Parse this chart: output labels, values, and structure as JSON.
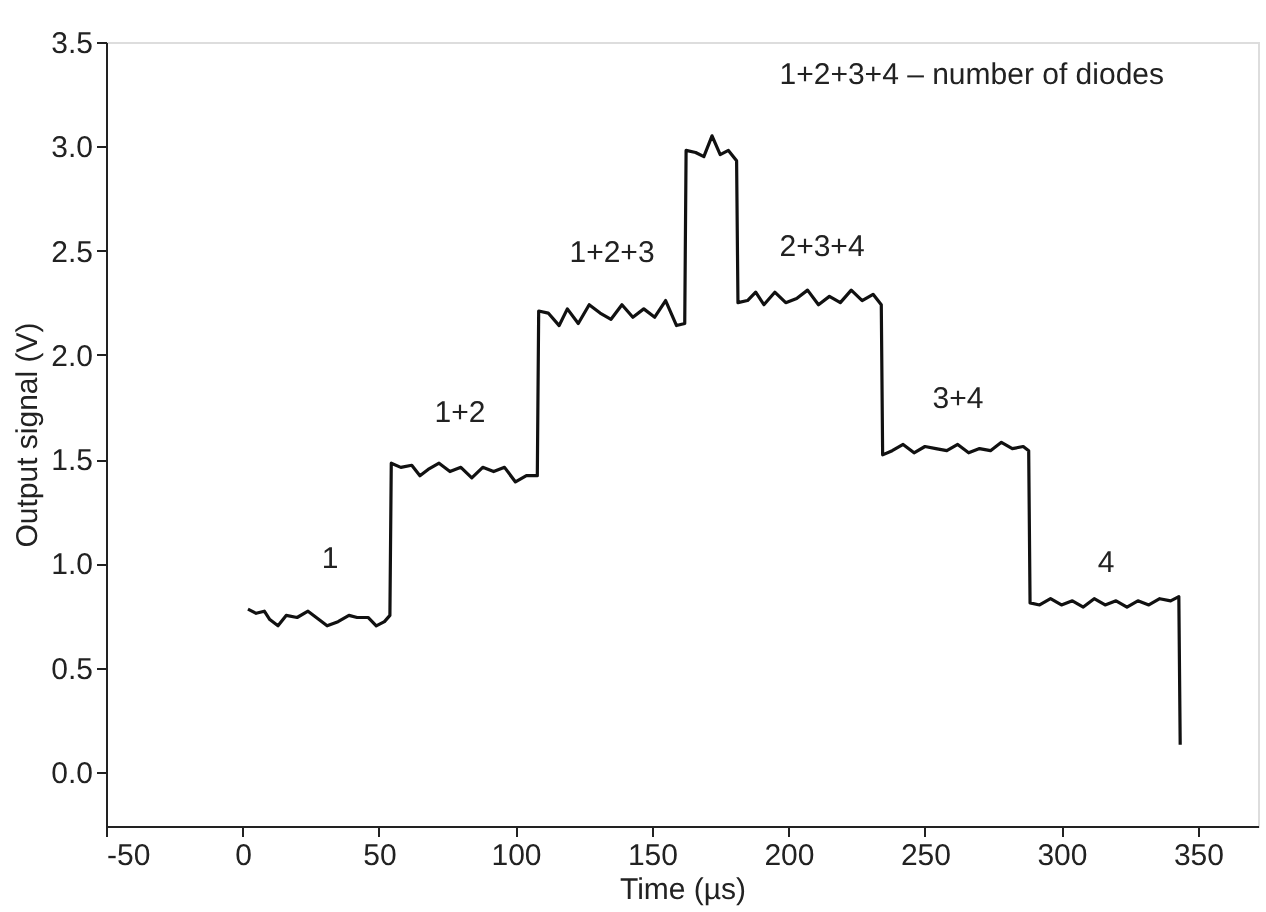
{
  "chart_data": {
    "type": "line",
    "xlabel": "Time (µs)",
    "ylabel": "Output signal (V)",
    "xlim": [
      -50,
      372
    ],
    "ylim": [
      -0.26,
      3.5
    ],
    "xticks": [
      -50,
      0,
      50,
      100,
      150,
      200,
      250,
      300,
      350
    ],
    "yticks": [
      {
        "value": 0,
        "label": "0.0"
      },
      0.5,
      {
        "value": 1,
        "label": "1.0"
      },
      1.5,
      {
        "value": 2,
        "label": "2.0"
      },
      2.5,
      {
        "value": 3,
        "label": "3.0"
      },
      3.5
    ],
    "grid": false,
    "marker": "none",
    "line_style": "solid",
    "series": [
      {
        "color": "#111111",
        "x": [
          2,
          5,
          8,
          10,
          13,
          16,
          20,
          24,
          28,
          31,
          35,
          39,
          42,
          46,
          49,
          52,
          54,
          54.5,
          58,
          62,
          65,
          68,
          72,
          76,
          80,
          84,
          88,
          92,
          96,
          100,
          104,
          108,
          108.5,
          112,
          116,
          119,
          123,
          127,
          131,
          135,
          139,
          143,
          147,
          151,
          155,
          159,
          162,
          162.5,
          166,
          169,
          172,
          175,
          178,
          181,
          181.5,
          185,
          188,
          191,
          195,
          199,
          203,
          207,
          211,
          215,
          219,
          223,
          227,
          231,
          234,
          234.5,
          238,
          242,
          246,
          250,
          254,
          258,
          262,
          266,
          270,
          274,
          278,
          282,
          286,
          288,
          288.5,
          292,
          296,
          300,
          304,
          308,
          312,
          316,
          320,
          324,
          328,
          332,
          336,
          340,
          343,
          343.5
        ],
        "values": [
          0.78,
          0.76,
          0.77,
          0.73,
          0.7,
          0.75,
          0.74,
          0.77,
          0.73,
          0.7,
          0.72,
          0.75,
          0.74,
          0.74,
          0.7,
          0.72,
          0.75,
          1.48,
          1.46,
          1.47,
          1.42,
          1.45,
          1.48,
          1.44,
          1.46,
          1.41,
          1.46,
          1.44,
          1.46,
          1.39,
          1.42,
          1.42,
          2.21,
          2.2,
          2.14,
          2.22,
          2.15,
          2.24,
          2.2,
          2.17,
          2.24,
          2.18,
          2.22,
          2.18,
          2.26,
          2.14,
          2.15,
          2.98,
          2.97,
          2.95,
          3.05,
          2.96,
          2.98,
          2.93,
          2.25,
          2.26,
          2.3,
          2.24,
          2.3,
          2.25,
          2.27,
          2.31,
          2.24,
          2.28,
          2.25,
          2.31,
          2.26,
          2.29,
          2.24,
          1.52,
          1.54,
          1.57,
          1.53,
          1.56,
          1.55,
          1.54,
          1.57,
          1.53,
          1.55,
          1.54,
          1.58,
          1.55,
          1.56,
          1.54,
          0.81,
          0.8,
          0.83,
          0.8,
          0.82,
          0.79,
          0.83,
          0.8,
          0.82,
          0.79,
          0.82,
          0.8,
          0.83,
          0.82,
          0.84,
          0.13
        ]
      }
    ],
    "annotations": [
      "1+2+3+4 – number of diodes",
      "1",
      "1+2",
      "1+2+3",
      "2+3+4",
      "3+4",
      "4"
    ]
  }
}
